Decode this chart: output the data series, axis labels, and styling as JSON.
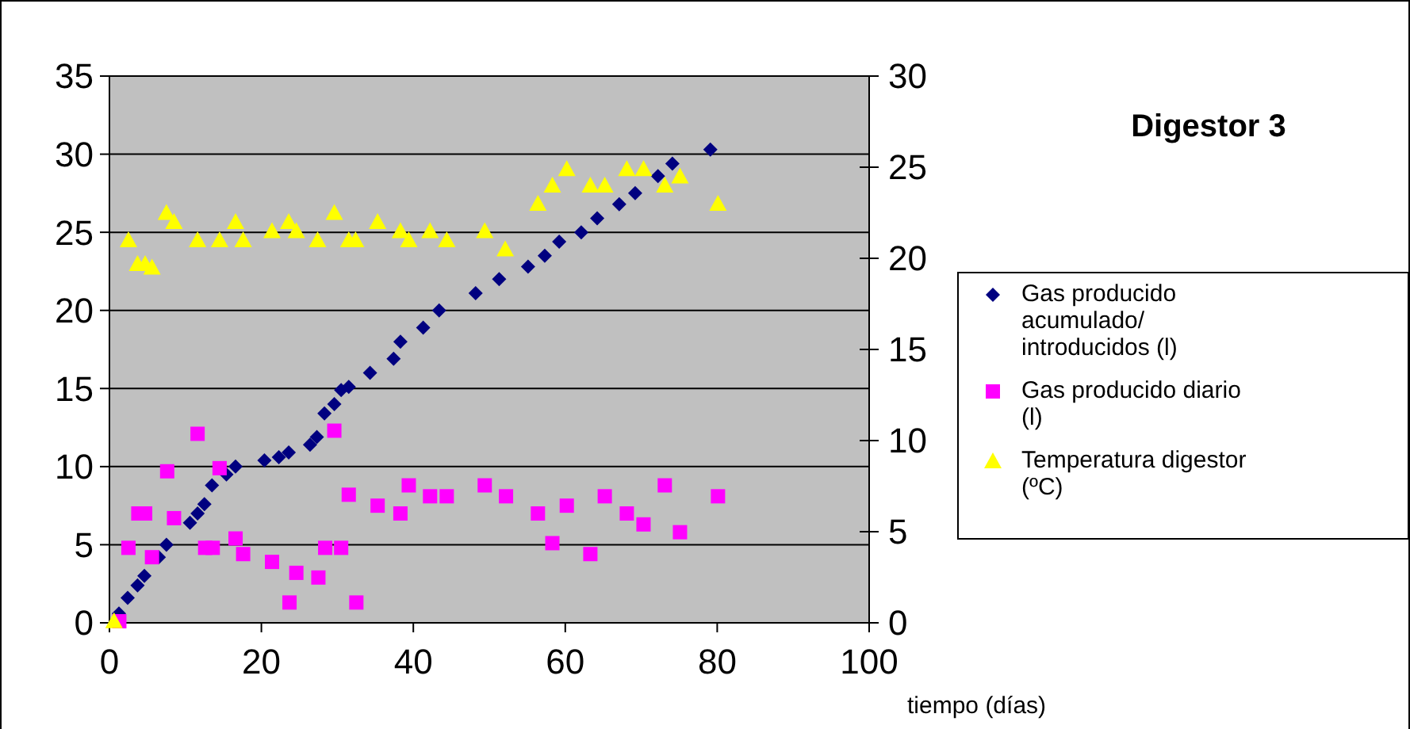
{
  "chart_data": {
    "type": "scatter",
    "title": "Digestor 3",
    "xlabel": "tiempo (días)",
    "xlim": [
      0,
      100
    ],
    "xticks": [
      0,
      20,
      40,
      60,
      80,
      100
    ],
    "ylim": [
      0,
      35
    ],
    "yticks": [
      0,
      5,
      10,
      15,
      20,
      25,
      30,
      35
    ],
    "y2lim": [
      0,
      30
    ],
    "y2ticks": [
      0,
      5,
      10,
      15,
      20,
      25,
      30
    ],
    "grid": "y",
    "legend": "right",
    "series": [
      {
        "name": "Gas producido acumulado/ introducidos (l)",
        "color": "#000080",
        "marker": "diamond",
        "x": [
          1.25,
          2.4,
          3.7,
          4.6,
          6.5,
          7.5,
          10.6,
          11.6,
          12.5,
          13.5,
          15.4,
          16.6,
          20.4,
          22.3,
          23.6,
          26.4,
          27.3,
          28.3,
          29.6,
          30.5,
          31.5,
          34.3,
          37.4,
          38.3,
          41.3,
          43.4,
          48.2,
          51.3,
          55.1,
          57.3,
          59.2,
          62.1,
          64.2,
          67.1,
          69.2,
          72.2,
          74.1,
          79.1
        ],
        "values": [
          0.6,
          1.6,
          2.4,
          3.0,
          4.2,
          5.0,
          6.4,
          7.0,
          7.6,
          8.8,
          9.5,
          10.0,
          10.4,
          10.6,
          10.9,
          11.4,
          11.9,
          13.4,
          14.0,
          14.9,
          15.1,
          16.0,
          16.9,
          18.0,
          18.9,
          20.0,
          21.1,
          22.0,
          22.8,
          23.5,
          24.4,
          25.0,
          25.9,
          26.8,
          27.5,
          28.6,
          29.4,
          30.3
        ]
      },
      {
        "name": "Gas producido diario (l)",
        "color": "#ff00ff",
        "marker": "square",
        "x": [
          1.3,
          2.5,
          3.8,
          4.7,
          5.6,
          7.6,
          8.5,
          11.6,
          12.6,
          13.6,
          14.5,
          16.6,
          17.6,
          21.4,
          23.7,
          24.6,
          27.5,
          28.4,
          29.6,
          30.5,
          31.5,
          32.5,
          35.3,
          38.3,
          39.4,
          42.2,
          44.4,
          49.4,
          52.2,
          56.4,
          58.3,
          60.2,
          63.3,
          65.2,
          68.1,
          70.3,
          73.1,
          75.1,
          80.1
        ],
        "values": [
          0.1,
          4.8,
          7.0,
          7.0,
          4.2,
          9.7,
          6.7,
          12.1,
          4.8,
          4.8,
          9.9,
          5.4,
          4.4,
          3.9,
          1.3,
          3.2,
          2.9,
          4.8,
          12.3,
          4.8,
          8.2,
          1.3,
          7.5,
          7.0,
          8.8,
          8.1,
          8.1,
          8.8,
          8.1,
          7.0,
          5.1,
          7.5,
          4.4,
          8.1,
          7.0,
          6.3,
          8.8,
          5.8,
          8.1
        ]
      },
      {
        "name": "Temperatura digestor (ºC)",
        "color": "#ffff00",
        "marker": "triangle",
        "axis": "y2",
        "x": [
          0.6,
          2.5,
          3.7,
          4.7,
          5.6,
          7.5,
          8.5,
          11.6,
          14.5,
          16.6,
          17.6,
          21.4,
          23.6,
          24.6,
          27.4,
          29.6,
          31.5,
          32.4,
          35.3,
          38.3,
          39.4,
          42.2,
          44.4,
          49.4,
          52.1,
          56.4,
          58.3,
          60.2,
          63.3,
          65.2,
          68.1,
          70.3,
          73.1,
          75.1,
          80.1
        ],
        "values": [
          0.1,
          21.0,
          19.7,
          19.7,
          19.5,
          22.5,
          22.0,
          21.0,
          21.0,
          22.0,
          21.0,
          21.5,
          22.0,
          21.5,
          21.0,
          22.5,
          21.0,
          21.0,
          22.0,
          21.5,
          21.0,
          21.5,
          21.0,
          21.5,
          20.5,
          23.0,
          24.0,
          24.9,
          24.0,
          24.0,
          24.9,
          24.9,
          24.0,
          24.5,
          23.0
        ]
      }
    ]
  }
}
